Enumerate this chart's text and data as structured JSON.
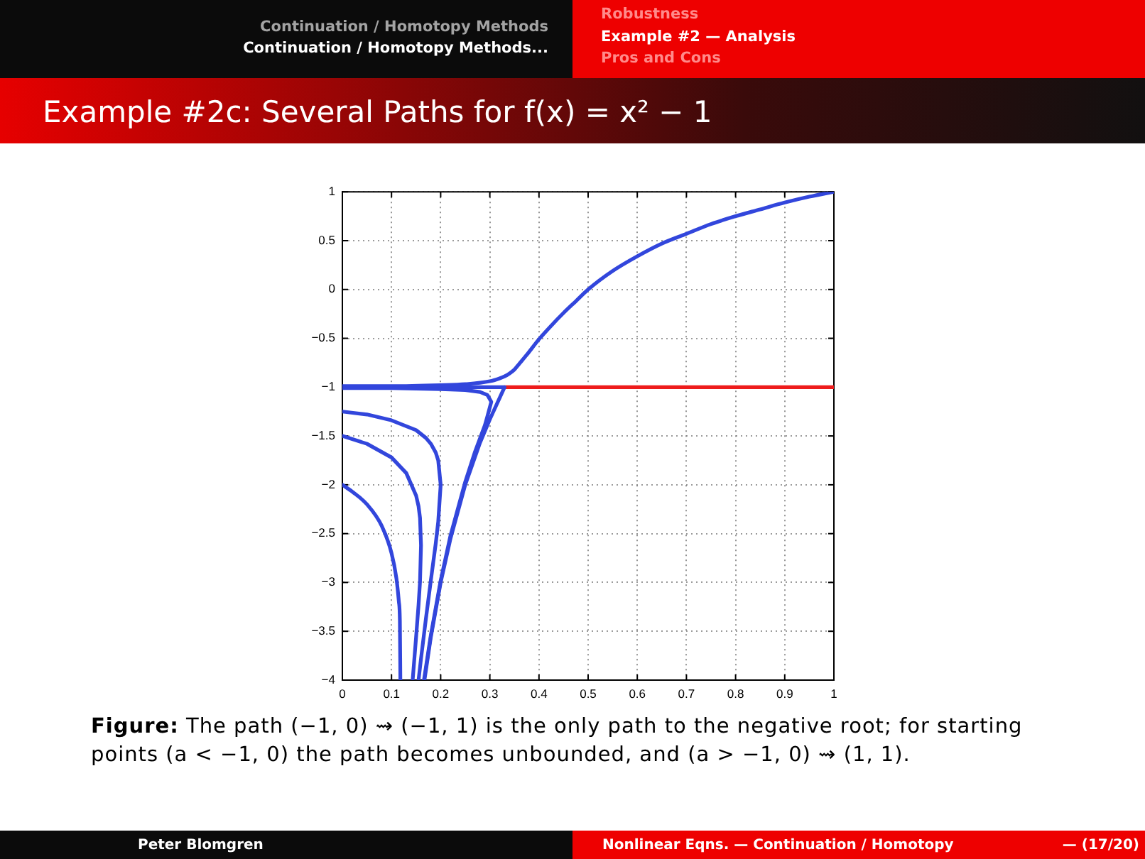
{
  "chart_data": {
    "type": "line",
    "title": "Example #2c: Several Paths for f(x) = x² − 1",
    "annotations": [
      "Continuation / Homotopy Methods",
      "Continuation / Homotopy Methods...",
      "Robustness",
      "Example #2 — Analysis",
      "Pros and Cons",
      "Figure: The path (−1, 0) ⇝ (−1, 1) is the only path to the negative root; for starting points (a < −1, 0) the path becomes unbounded, and (a > −1, 0) ⇝ (1, 1).",
      "Peter Blomgren",
      "Nonlinear Eqns. — Continuation / Homotopy",
      "— (17/20)"
    ],
    "series": [
      {
        "color": "#3246dc",
        "x": [
          0,
          0.02,
          0.05,
          0.08,
          0.1,
          0.11,
          0.115,
          0.117,
          0.118
        ],
        "values": [
          -2,
          -2.07,
          -2.2,
          -2.42,
          -2.7,
          -2.96,
          -3.2,
          -3.39,
          -4
        ]
      },
      {
        "color": "#3246dc",
        "x": [
          0,
          0.05,
          0.1,
          0.13,
          0.15,
          0.155,
          0.158,
          0.16,
          0.158,
          0.155,
          0.15,
          0.143
        ],
        "values": [
          -1.5,
          -1.58,
          -1.72,
          -1.88,
          -2.11,
          -2.22,
          -2.34,
          -2.62,
          -2.99,
          -3.23,
          -3.56,
          -4
        ]
      },
      {
        "color": "#3246dc",
        "x": [
          0,
          0.05,
          0.1,
          0.15,
          0.17,
          0.18,
          0.19,
          0.195,
          0.2,
          0.195,
          0.19,
          0.18,
          0.17,
          0.16,
          0.155
        ],
        "values": [
          -1.25,
          -1.28,
          -1.34,
          -1.44,
          -1.52,
          -1.58,
          -1.67,
          -1.75,
          -2,
          -2.38,
          -2.6,
          -2.98,
          -3.37,
          -3.78,
          -4
        ]
      },
      {
        "color": "#3246dc",
        "x": [
          0,
          0.1,
          0.2,
          0.25,
          0.28,
          0.295,
          0.303,
          0.295,
          0.29,
          0.27,
          0.25,
          0.22,
          0.2,
          0.18,
          0.166
        ],
        "values": [
          -1.01,
          -1.01,
          -1.02,
          -1.03,
          -1.05,
          -1.08,
          -1.15,
          -1.3,
          -1.39,
          -1.66,
          -1.97,
          -2.52,
          -2.98,
          -3.54,
          -4
        ]
      },
      {
        "color": "#3246dc",
        "x": [
          0,
          0.33,
          0.3,
          0.28,
          0.25,
          0.22,
          0.2,
          0.18,
          0.167
        ],
        "values": [
          -1,
          -1,
          -1.33,
          -1.57,
          -2,
          -2.55,
          -3,
          -3.56,
          -4
        ]
      },
      {
        "color": "#3246dc",
        "x": [
          0,
          0.1,
          0.2,
          0.25,
          0.3,
          0.32,
          0.33,
          0.34,
          0.35,
          0.36,
          0.375,
          0.4,
          0.425,
          0.45,
          0.475,
          0.5,
          0.55,
          0.6,
          0.65,
          0.7,
          0.75,
          0.8,
          0.85,
          0.9,
          0.95,
          1
        ],
        "values": [
          -0.99,
          -0.99,
          -0.98,
          -0.97,
          -0.94,
          -0.91,
          -0.89,
          -0.86,
          -0.82,
          -0.76,
          -0.67,
          -0.51,
          -0.37,
          -0.24,
          -0.12,
          0,
          0.19,
          0.34,
          0.47,
          0.57,
          0.67,
          0.75,
          0.82,
          0.89,
          0.95,
          1
        ]
      },
      {
        "color": "#ee1c1c",
        "x": [
          0.33,
          1
        ],
        "values": [
          -1,
          -1
        ]
      }
    ],
    "xlim": [
      0,
      1
    ],
    "ylim": [
      -4,
      1
    ],
    "xticks": [
      0,
      0.1,
      0.2,
      0.3,
      0.4,
      0.5,
      0.6,
      0.7,
      0.8,
      0.9,
      1
    ],
    "yticks": [
      -4,
      -3.5,
      -3,
      -2.5,
      -2,
      -1.5,
      -1,
      -0.5,
      0,
      0.5,
      1
    ],
    "grid": true,
    "marker": "none",
    "line_style": "solid"
  }
}
